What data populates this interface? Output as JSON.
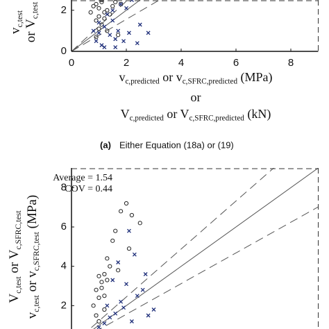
{
  "caption": {
    "label": "(a)",
    "text": "Either Equation (18a) or (19)"
  },
  "chart_data": [
    {
      "type": "scatter",
      "ylabel_lines": [
        [
          {
            "text": "v"
          },
          {
            "text": "c,test",
            "sub": true
          }
        ],
        [
          {
            "text": "or V"
          },
          {
            "text": "c,test",
            "sub": true
          }
        ]
      ],
      "xlabel_lines": [
        [
          {
            "text": "v"
          },
          {
            "text": "c,predicted",
            "sub": true
          },
          {
            "text": " or v"
          },
          {
            "text": "c,SFRC,predicted",
            "sub": true
          },
          {
            "text": " (MPa)"
          }
        ],
        [
          {
            "text": "or"
          }
        ],
        [
          {
            "text": "V"
          },
          {
            "text": "c,predicted",
            "sub": true
          },
          {
            "text": " or V"
          },
          {
            "text": "c,SFRC,predicted",
            "sub": true
          },
          {
            "text": " (kN)"
          }
        ]
      ],
      "xlim": [
        0,
        9
      ],
      "ylim": [
        0,
        2.5
      ],
      "xticks": [
        0,
        2,
        4,
        6,
        8
      ],
      "yticks": [
        0,
        2
      ],
      "reference_lines": [
        {
          "slope": 1,
          "style": "solid"
        },
        {
          "slope": 1.22,
          "style": "dashed"
        },
        {
          "slope": 0.78,
          "style": "dashed"
        }
      ],
      "series": [
        {
          "marker": "circle",
          "color": "#222222",
          "x": [
            0.9,
            1.0,
            1.1,
            1.2,
            0.8,
            1.3,
            1.0,
            1.4,
            1.6,
            0.9,
            1.1,
            1.2,
            1.5,
            1.0,
            0.7,
            1.8,
            1.3,
            0.9,
            1.1,
            1.7
          ],
          "values": [
            2.3,
            2.1,
            2.4,
            1.9,
            2.2,
            2.0,
            1.7,
            1.8,
            2.4,
            1.5,
            1.3,
            1.6,
            2.2,
            1.1,
            1.9,
            2.3,
            1.0,
            0.7,
            2.5,
            0.8
          ]
        },
        {
          "marker": "cross",
          "color": "#1f2f7a",
          "x": [
            1.2,
            1.5,
            1.8,
            2.0,
            2.2,
            1.0,
            1.4,
            1.7,
            2.5,
            0.9,
            1.1,
            1.6,
            2.1,
            1.3,
            0.8,
            1.9,
            2.8,
            1.5,
            1.2,
            2.4,
            1.0,
            1.6
          ],
          "values": [
            1.2,
            1.5,
            2.3,
            2.1,
            2.5,
            0.9,
            0.8,
            1.0,
            1.3,
            0.5,
            0.3,
            0.6,
            0.9,
            1.8,
            1.0,
            0.5,
            0.9,
            2.0,
            0.2,
            0.4,
            1.4,
            0.2
          ]
        }
      ]
    },
    {
      "type": "scatter",
      "ylabel_lines": [
        [
          {
            "text": "V"
          },
          {
            "text": "c,test",
            "sub": true
          },
          {
            "text": " or V"
          },
          {
            "text": "c,SFRC,test",
            "sub": true
          }
        ],
        [
          {
            "text": "v"
          },
          {
            "text": "c,test",
            "sub": true
          },
          {
            "text": " or v"
          },
          {
            "text": "c,SFRC,test",
            "sub": true
          },
          {
            "text": " (MPa)"
          }
        ]
      ],
      "annotations": [
        "Average = 1.54",
        "COV = 0.44"
      ],
      "xlim": [
        0,
        9
      ],
      "ylim": [
        0,
        9
      ],
      "yticks": [
        2,
        4,
        6,
        8
      ],
      "reference_lines": [
        {
          "slope": 1,
          "style": "solid"
        },
        {
          "slope": 1.22,
          "style": "dashed"
        },
        {
          "slope": 0.78,
          "style": "dashed"
        }
      ],
      "series": [
        {
          "marker": "circle",
          "color": "#222222",
          "x": [
            1.0,
            1.1,
            0.9,
            1.2,
            1.3,
            1.5,
            1.8,
            2.0,
            2.2,
            1.0,
            1.4,
            0.8,
            1.6,
            2.5,
            1.2,
            1.1,
            0.9,
            1.3,
            2.1,
            1.7,
            1.0,
            1.2
          ],
          "values": [
            3.5,
            3.2,
            2.8,
            3.6,
            4.4,
            5.3,
            6.8,
            7.2,
            6.6,
            2.4,
            4.0,
            2.0,
            5.8,
            6.2,
            1.8,
            2.9,
            1.5,
            3.3,
            4.9,
            3.8,
            1.2,
            2.5
          ]
        },
        {
          "marker": "cross",
          "color": "#1f2f7a",
          "x": [
            1.4,
            1.8,
            2.0,
            2.3,
            2.6,
            1.6,
            2.1,
            1.2,
            1.9,
            2.4,
            1.5,
            2.8,
            1.0,
            1.7,
            2.2,
            1.3,
            3.0,
            2.7
          ],
          "values": [
            1.4,
            2.2,
            3.1,
            4.6,
            2.8,
            1.6,
            5.8,
            1.1,
            1.9,
            2.5,
            3.3,
            1.5,
            0.9,
            4.2,
            1.2,
            2.0,
            1.8,
            3.6
          ]
        }
      ]
    }
  ]
}
